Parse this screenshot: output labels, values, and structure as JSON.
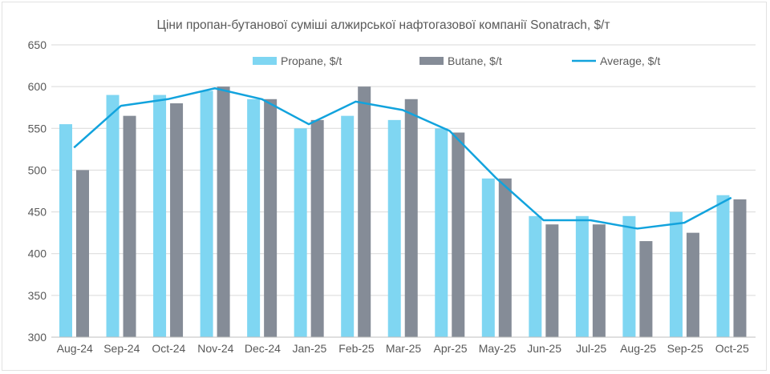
{
  "chart_data": {
    "type": "bar",
    "title": "Ціни пропан-бутанової суміші алжирської нафтогазової компанії Sonatrach, $/т",
    "xlabel": "",
    "ylabel": "",
    "ylim": [
      300,
      650
    ],
    "yticks": [
      300,
      350,
      400,
      450,
      500,
      550,
      600,
      650
    ],
    "grid": true,
    "legend_position": "top",
    "categories": [
      "Aug-24",
      "Sep-24",
      "Oct-24",
      "Nov-24",
      "Dec-24",
      "Jan-25",
      "Feb-25",
      "Mar-25",
      "Apr-25",
      "May-25",
      "Jun-25",
      "Jul-25",
      "Aug-25",
      "Sep-25",
      "Oct-25"
    ],
    "series": [
      {
        "name": "Propane, $/t",
        "type": "bar",
        "color": "#7fd6f2",
        "values": [
          555,
          590,
          590,
          595,
          585,
          550,
          565,
          560,
          550,
          490,
          445,
          445,
          445,
          450,
          470
        ]
      },
      {
        "name": "Butane, $/t",
        "type": "bar",
        "color": "#858c97",
        "values": [
          500,
          565,
          580,
          600,
          585,
          560,
          600,
          585,
          545,
          490,
          435,
          435,
          415,
          425,
          465
        ]
      },
      {
        "name": "Average, $/t",
        "type": "line",
        "color": "#12a3dd",
        "values": [
          527,
          577,
          585,
          598,
          585,
          555,
          582,
          572,
          547,
          490,
          440,
          440,
          430,
          437,
          467
        ]
      }
    ]
  }
}
